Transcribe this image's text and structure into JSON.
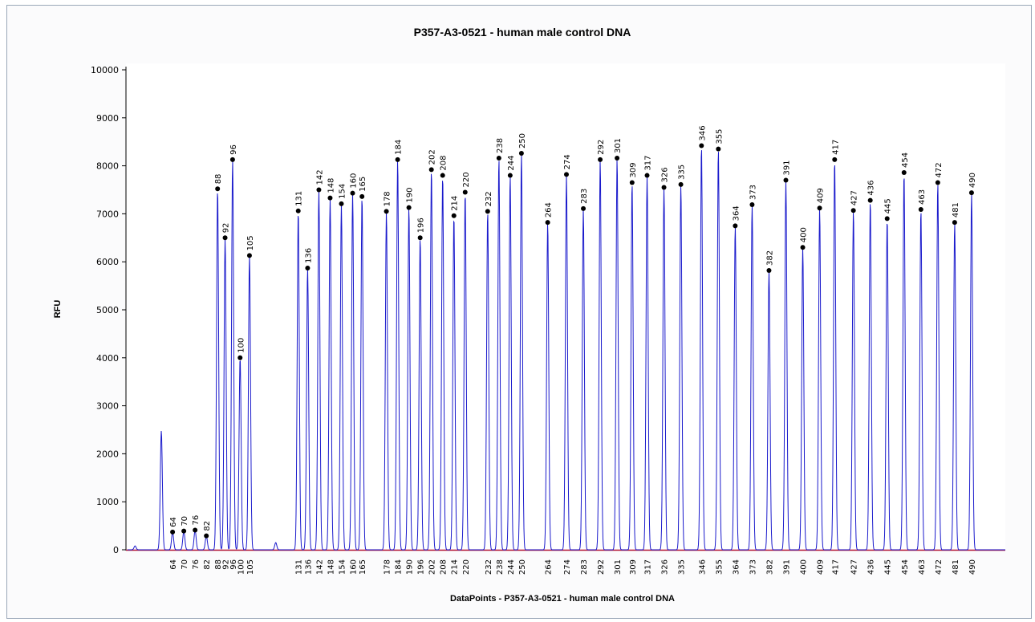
{
  "window": {
    "title": "P357-A3-0521 - human male control DNA"
  },
  "colors": {
    "trace": "#1a1acc",
    "baseline": "#b01030",
    "marker": "#000000",
    "axis": "#000000",
    "plot_bg": "#ffffff",
    "frame_bg": "#fbfbfc"
  },
  "chart_data": {
    "type": "line",
    "title": "P357-A3-0521 - human male control DNA",
    "xlabel": "DataPoints - P357-A3-0521 - human male control DNA",
    "ylabel": "RFU",
    "ylim": [
      0,
      10000
    ],
    "yticks": [
      0,
      1000,
      2000,
      3000,
      4000,
      5000,
      6000,
      7000,
      8000,
      9000,
      10000
    ],
    "xlim": [
      40,
      508
    ],
    "grid": false,
    "legend": "none",
    "unlabeled_peaks": [
      {
        "x": 44,
        "y": 80
      },
      {
        "x": 58,
        "y": 2480
      },
      {
        "x": 119,
        "y": 150
      }
    ],
    "peaks": [
      {
        "label": "64",
        "x": 64,
        "y": 370
      },
      {
        "label": "70",
        "x": 70,
        "y": 390
      },
      {
        "label": "76",
        "x": 76,
        "y": 410
      },
      {
        "label": "82",
        "x": 82,
        "y": 290
      },
      {
        "label": "88",
        "x": 88,
        "y": 7520
      },
      {
        "label": "92",
        "x": 92,
        "y": 6500
      },
      {
        "label": "96",
        "x": 96,
        "y": 8130
      },
      {
        "label": "100",
        "x": 100,
        "y": 4000
      },
      {
        "label": "105",
        "x": 105,
        "y": 6130
      },
      {
        "label": "131",
        "x": 131,
        "y": 7060
      },
      {
        "label": "136",
        "x": 136,
        "y": 5870
      },
      {
        "label": "142",
        "x": 142,
        "y": 7500
      },
      {
        "label": "148",
        "x": 148,
        "y": 7330
      },
      {
        "label": "154",
        "x": 154,
        "y": 7210
      },
      {
        "label": "160",
        "x": 160,
        "y": 7430
      },
      {
        "label": "165",
        "x": 165,
        "y": 7360
      },
      {
        "label": "178",
        "x": 178,
        "y": 7050
      },
      {
        "label": "184",
        "x": 184,
        "y": 8130
      },
      {
        "label": "190",
        "x": 190,
        "y": 7130
      },
      {
        "label": "196",
        "x": 196,
        "y": 6500
      },
      {
        "label": "202",
        "x": 202,
        "y": 7920
      },
      {
        "label": "208",
        "x": 208,
        "y": 7800
      },
      {
        "label": "214",
        "x": 214,
        "y": 6960
      },
      {
        "label": "220",
        "x": 220,
        "y": 7450
      },
      {
        "label": "232",
        "x": 232,
        "y": 7050
      },
      {
        "label": "238",
        "x": 238,
        "y": 8160
      },
      {
        "label": "244",
        "x": 244,
        "y": 7800
      },
      {
        "label": "250",
        "x": 250,
        "y": 8260
      },
      {
        "label": "264",
        "x": 264,
        "y": 6820
      },
      {
        "label": "274",
        "x": 274,
        "y": 7820
      },
      {
        "label": "283",
        "x": 283,
        "y": 7110
      },
      {
        "label": "292",
        "x": 292,
        "y": 8130
      },
      {
        "label": "301",
        "x": 301,
        "y": 8160
      },
      {
        "label": "309",
        "x": 309,
        "y": 7650
      },
      {
        "label": "317",
        "x": 317,
        "y": 7800
      },
      {
        "label": "326",
        "x": 326,
        "y": 7550
      },
      {
        "label": "335",
        "x": 335,
        "y": 7610
      },
      {
        "label": "346",
        "x": 346,
        "y": 8420
      },
      {
        "label": "355",
        "x": 355,
        "y": 8350
      },
      {
        "label": "364",
        "x": 364,
        "y": 6750
      },
      {
        "label": "373",
        "x": 373,
        "y": 7190
      },
      {
        "label": "382",
        "x": 382,
        "y": 5820
      },
      {
        "label": "391",
        "x": 391,
        "y": 7700
      },
      {
        "label": "400",
        "x": 400,
        "y": 6300
      },
      {
        "label": "409",
        "x": 409,
        "y": 7120
      },
      {
        "label": "417",
        "x": 417,
        "y": 8130
      },
      {
        "label": "427",
        "x": 427,
        "y": 7070
      },
      {
        "label": "436",
        "x": 436,
        "y": 7280
      },
      {
        "label": "445",
        "x": 445,
        "y": 6900
      },
      {
        "label": "454",
        "x": 454,
        "y": 7860
      },
      {
        "label": "463",
        "x": 463,
        "y": 7090
      },
      {
        "label": "472",
        "x": 472,
        "y": 7650
      },
      {
        "label": "481",
        "x": 481,
        "y": 6820
      },
      {
        "label": "490",
        "x": 490,
        "y": 7440
      }
    ]
  }
}
